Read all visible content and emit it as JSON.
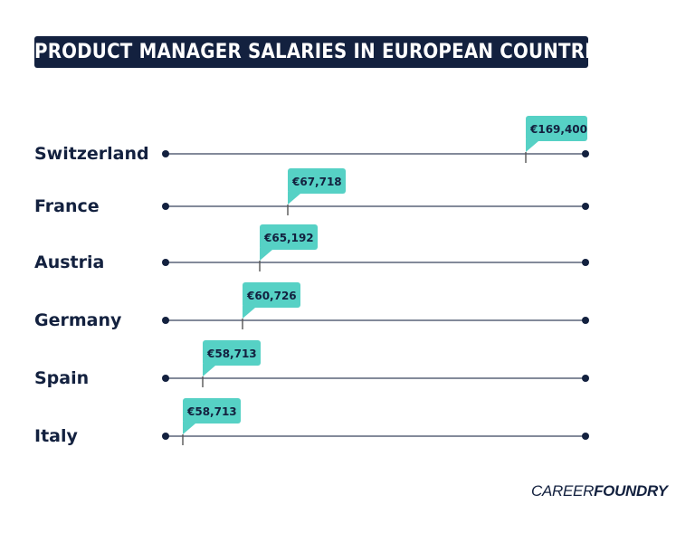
{
  "chart_data": {
    "type": "dot-range",
    "title": "PRODUCT MANAGER SALARIES IN EUROPEAN COUNTRIES",
    "categories": [
      "Switzerland",
      "France",
      "Austria",
      "Germany",
      "Spain",
      "Italy"
    ],
    "values": [
      169400,
      67718,
      65192,
      60726,
      58713,
      58713
    ],
    "labels": [
      "€169,400",
      "€67,718",
      "€65,192",
      "€60,726",
      "€58,713",
      "€58,713"
    ],
    "grid": false
  },
  "colors": {
    "navy": "#13213f",
    "teal": "#56d1c5",
    "line": "#5a6479"
  },
  "logo": {
    "part1": "CAREER",
    "part2": "FOUNDRY"
  }
}
